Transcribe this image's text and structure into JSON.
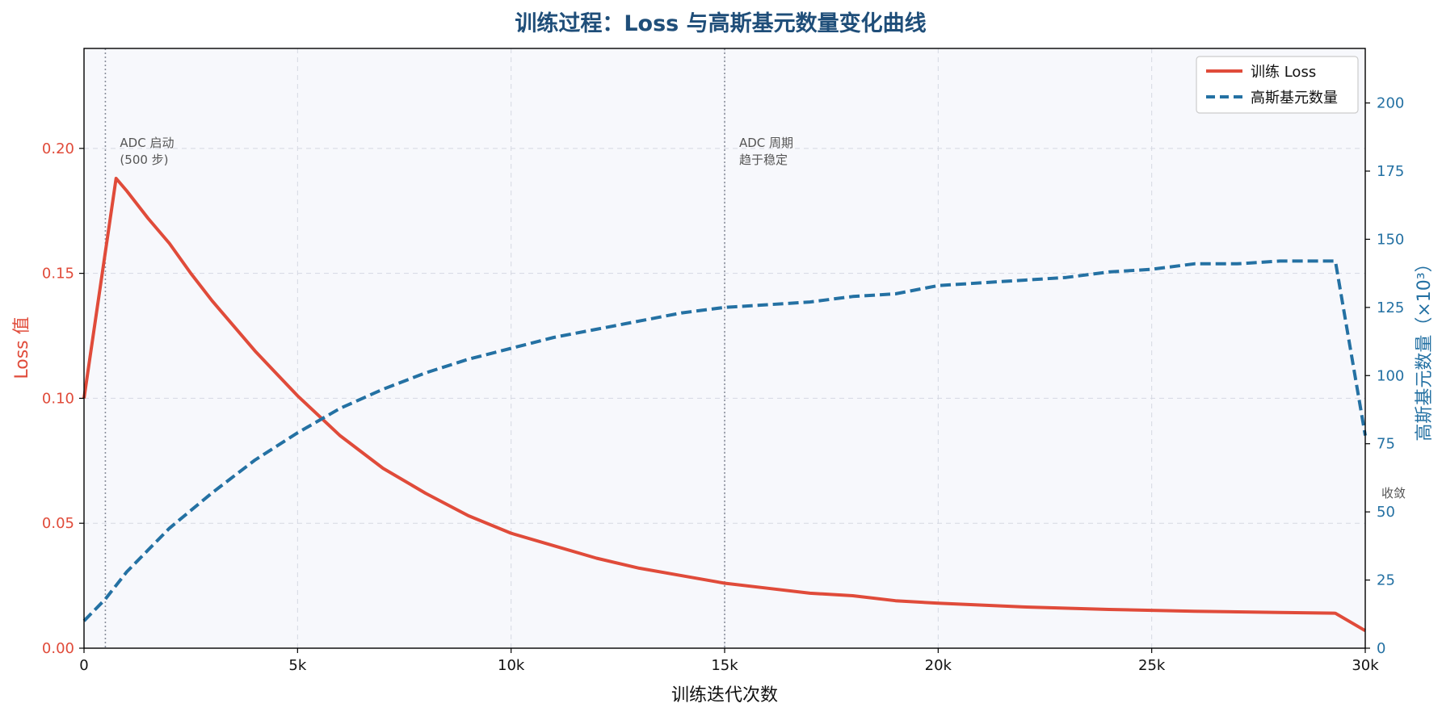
{
  "chart_data": {
    "type": "line",
    "title": "训练过程：Loss 与高斯基元数量变化曲线",
    "xlabel": "训练迭代次数",
    "ylabel_left": "Loss 值",
    "ylabel_right": "高斯基元数量（×10³）",
    "xlim": [
      0,
      30000
    ],
    "ylim_left": [
      0,
      0.24
    ],
    "ylim_right": [
      0,
      220
    ],
    "x_ticks": [
      0,
      5000,
      10000,
      15000,
      20000,
      25000,
      30000
    ],
    "x_tick_labels": [
      "0",
      "5k",
      "10k",
      "15k",
      "20k",
      "25k",
      "30k"
    ],
    "y_left_ticks": [
      0,
      0.05,
      0.1,
      0.15,
      0.2
    ],
    "y_left_tick_labels": [
      "0.00",
      "0.05",
      "0.10",
      "0.15",
      "0.20"
    ],
    "y_right_ticks": [
      0,
      25,
      50,
      75,
      100,
      125,
      150,
      175,
      200
    ],
    "y_right_tick_labels": [
      "0",
      "25",
      "50",
      "75",
      "100",
      "125",
      "150",
      "175",
      "200"
    ],
    "grid": true,
    "legend_position": "top-right",
    "series": [
      {
        "name": "训练 Loss",
        "axis": "left",
        "color": "#e04b3a",
        "style": "solid",
        "x": [
          0,
          750,
          1000,
          1500,
          2000,
          2500,
          3000,
          3500,
          4000,
          4500,
          5000,
          6000,
          7000,
          8000,
          9000,
          10000,
          11000,
          12000,
          13000,
          14000,
          15000,
          16000,
          17000,
          18000,
          19000,
          20000,
          22000,
          24000,
          26000,
          28000,
          29300,
          30000
        ],
        "values": [
          0.1,
          0.188,
          0.183,
          0.172,
          0.162,
          0.15,
          0.139,
          0.129,
          0.119,
          0.11,
          0.101,
          0.085,
          0.072,
          0.062,
          0.053,
          0.046,
          0.041,
          0.036,
          0.032,
          0.029,
          0.026,
          0.024,
          0.022,
          0.021,
          0.019,
          0.018,
          0.0165,
          0.0155,
          0.0148,
          0.0143,
          0.014,
          0.007
        ]
      },
      {
        "name": "高斯基元数量",
        "axis": "right",
        "color": "#2471a3",
        "style": "dashed",
        "x": [
          0,
          500,
          1000,
          1500,
          2000,
          3000,
          4000,
          5000,
          6000,
          7000,
          8000,
          9000,
          10000,
          11000,
          12000,
          13000,
          14000,
          15000,
          16000,
          17000,
          18000,
          19000,
          20000,
          21000,
          22000,
          23000,
          24000,
          25000,
          26000,
          27000,
          28000,
          29000,
          29300,
          30000
        ],
        "values": [
          10,
          18,
          28,
          36,
          44,
          57,
          69,
          79,
          88,
          95,
          101,
          106,
          110,
          114,
          117,
          120,
          123,
          125,
          126,
          127,
          129,
          130,
          133,
          134,
          135,
          136,
          138,
          139,
          141,
          141,
          142,
          142,
          142,
          78
        ]
      }
    ],
    "vlines": [
      500,
      15000
    ],
    "annotations": [
      {
        "x": 500,
        "line1": "ADC 启动",
        "line2": "(500 步)"
      },
      {
        "x": 15000,
        "line1": "ADC 周期",
        "line2": "趋于稳定"
      }
    ],
    "convergence_label": "收敛"
  }
}
